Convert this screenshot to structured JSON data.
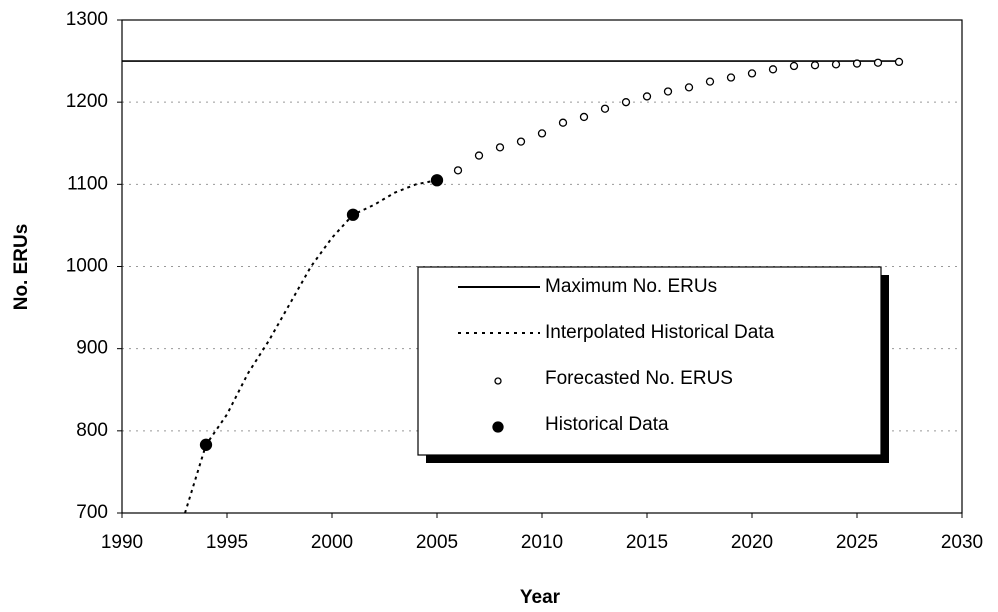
{
  "chart_data": {
    "type": "line",
    "x_label": "Year",
    "y_label": "No. ERUs",
    "xlim": [
      1990,
      2030
    ],
    "xticks": [
      1990,
      1995,
      2000,
      2005,
      2010,
      2015,
      2020,
      2025,
      2030
    ],
    "ylim": [
      700,
      1300
    ],
    "yticks": [
      700,
      800,
      900,
      1000,
      1100,
      1200,
      1300
    ],
    "grid": true,
    "legend": "lower right",
    "series": [
      {
        "name": "Maximum No. ERUs",
        "style": "solid",
        "color": "#000000",
        "x": [
          1990,
          2027
        ],
        "values": [
          1250,
          1250
        ]
      },
      {
        "name": "Interpolated Historical Data",
        "style": "dotted",
        "color": "#000000",
        "x": [
          1993,
          1994,
          1995,
          1996,
          1997,
          1998,
          1999,
          2000,
          2001,
          2002,
          2003,
          2004,
          2005
        ],
        "values": [
          700,
          783,
          820,
          870,
          910,
          955,
          1000,
          1035,
          1063,
          1075,
          1090,
          1100,
          1105
        ]
      },
      {
        "name": "Forecasted No. ERUS",
        "style": "open-marker",
        "color": "#000000",
        "x": [
          2006,
          2007,
          2008,
          2009,
          2010,
          2011,
          2012,
          2013,
          2014,
          2015,
          2016,
          2017,
          2018,
          2019,
          2020,
          2021,
          2022,
          2023,
          2024,
          2025,
          2026,
          2027
        ],
        "values": [
          1117,
          1135,
          1145,
          1152,
          1162,
          1175,
          1182,
          1192,
          1200,
          1207,
          1213,
          1218,
          1225,
          1230,
          1235,
          1240,
          1244,
          1245,
          1246,
          1247,
          1248,
          1249
        ]
      },
      {
        "name": "Historical Data",
        "style": "filled-marker",
        "color": "#000000",
        "x": [
          1994,
          2001,
          2005
        ],
        "values": [
          783,
          1063,
          1105
        ]
      }
    ]
  }
}
